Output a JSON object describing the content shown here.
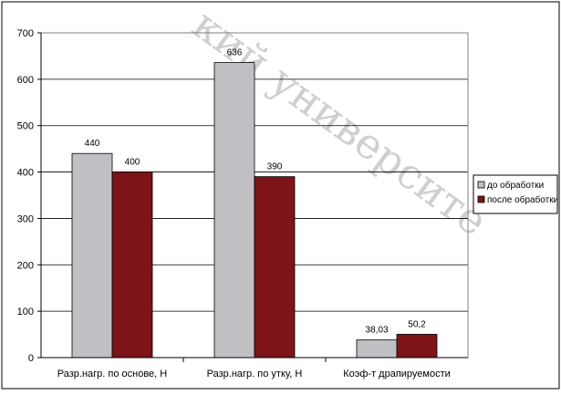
{
  "watermark": "кий университе",
  "chart_data": {
    "type": "bar",
    "categories": [
      "Разр.нагр. по основе, Н",
      "Разр.нагр. по утку, Н",
      "Коэф-т драпируемости"
    ],
    "series": [
      {
        "name": "до обработки",
        "values": [
          440,
          636,
          38.03
        ],
        "labels": [
          "440",
          "636",
          "38,03"
        ],
        "color": "#c0c0c4"
      },
      {
        "name": "после обработки",
        "values": [
          400,
          390,
          50.2
        ],
        "labels": [
          "400",
          "390",
          "50,2"
        ],
        "color": "#7d1418"
      }
    ],
    "yticks": [
      "0",
      "100",
      "200",
      "300",
      "400",
      "500",
      "600",
      "700"
    ],
    "ylim": [
      0,
      700
    ],
    "grid": true,
    "legend": "right",
    "title": "",
    "xlabel": "",
    "ylabel": ""
  }
}
